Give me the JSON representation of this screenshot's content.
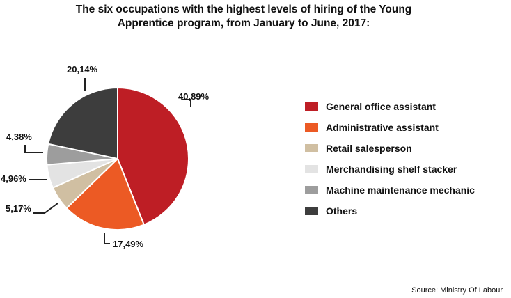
{
  "title_line1": "The six occupations with the highest levels of hiring of the Young",
  "title_line2": "Apprentice program, from January to June, 2017:",
  "source": "Source: Ministry Of Labour",
  "chart_data": {
    "type": "pie",
    "title": "The six occupations with the highest levels of hiring of the Young Apprentice program, from January to June, 2017:",
    "legend_position": "right",
    "slices": [
      {
        "label": "General office assistant",
        "value": 40.89,
        "value_label": "40,89%",
        "color": "#be1e25"
      },
      {
        "label": "Administrative assistant",
        "value": 17.49,
        "value_label": "17,49%",
        "color": "#ec5a24"
      },
      {
        "label": "Retail salesperson",
        "value": 5.17,
        "value_label": "5,17%",
        "color": "#d0bfa2"
      },
      {
        "label": "Merchandising shelf stacker",
        "value": 4.96,
        "value_label": "4,96%",
        "color": "#e3e3e3"
      },
      {
        "label": "Machine maintenance mechanic",
        "value": 4.38,
        "value_label": "4,38%",
        "color": "#9d9d9d"
      },
      {
        "label": "Others",
        "value": 20.14,
        "value_label": "20,14%",
        "color": "#3d3d3d"
      }
    ]
  }
}
